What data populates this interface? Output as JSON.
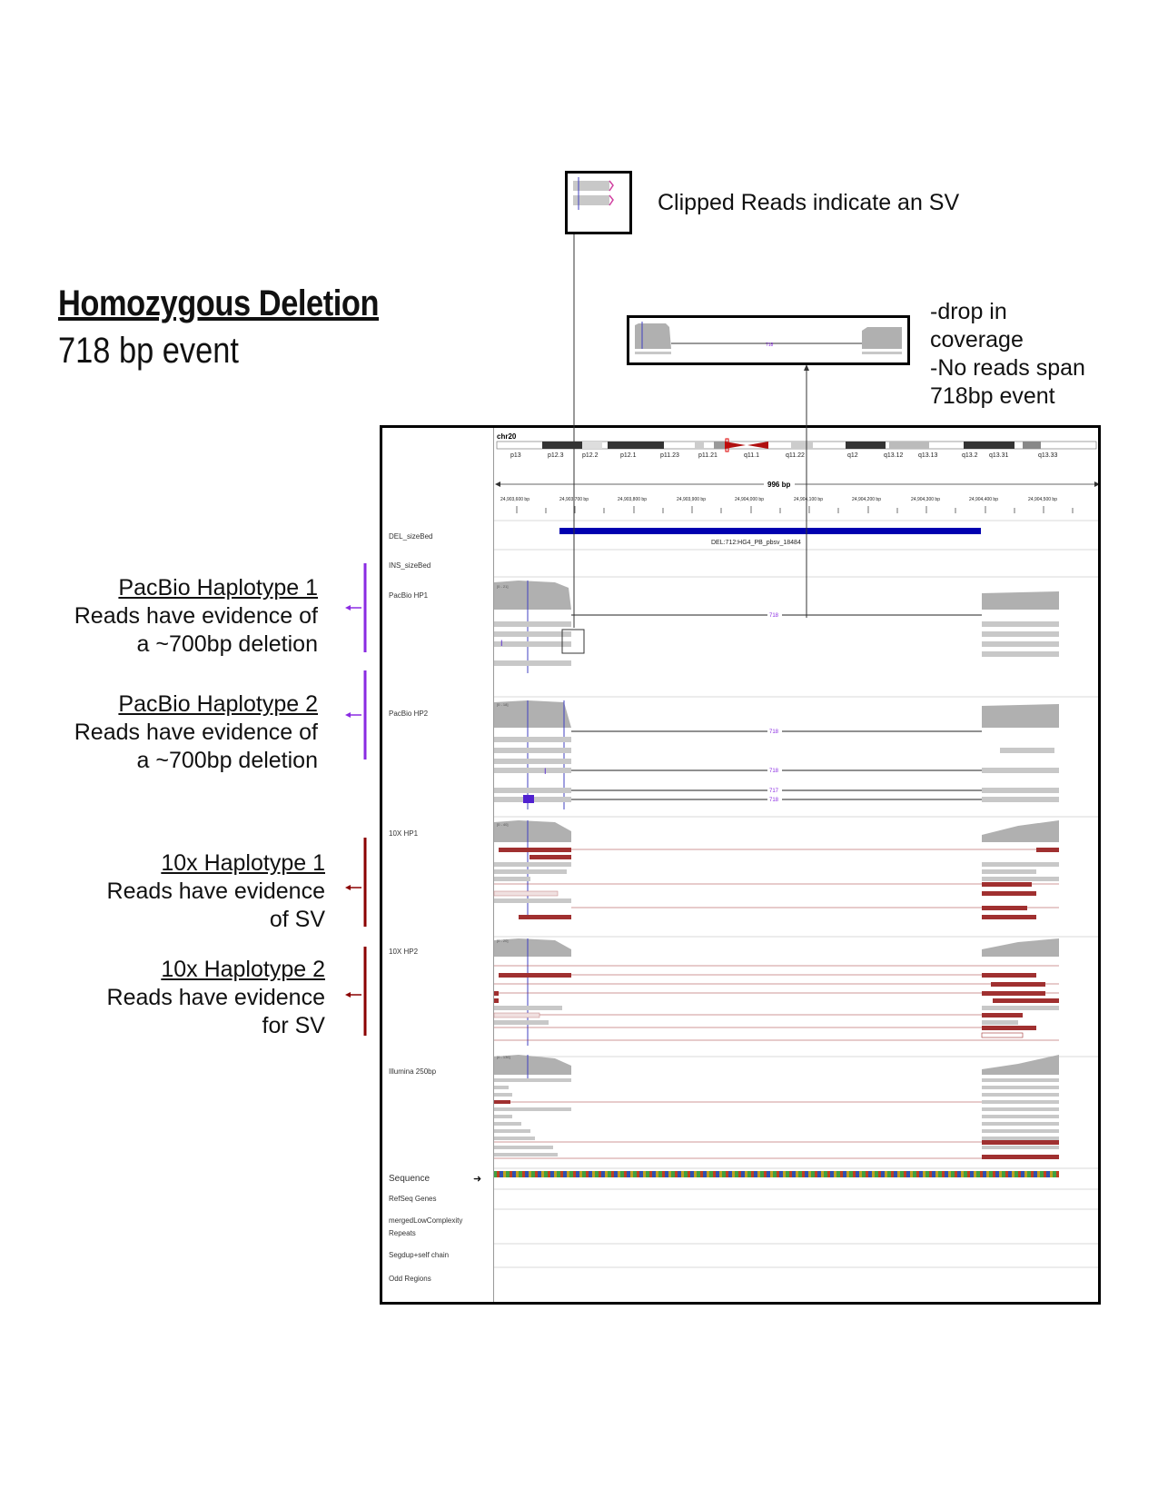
{
  "title": "Homozygous Deletion",
  "subtitle": "718 bp event",
  "callouts": {
    "clipped": "Clipped Reads indicate an SV",
    "coverage": [
      "-drop in",
      "coverage",
      "-No reads span",
      "718bp event"
    ]
  },
  "side_labels": [
    {
      "heading": "PacBio Haplotype 1",
      "lines": [
        "Reads have evidence of",
        "a ~700bp deletion"
      ],
      "color": "#8a2be2"
    },
    {
      "heading": "PacBio Haplotype 2",
      "lines": [
        "Reads have evidence of",
        "a ~700bp deletion"
      ],
      "color": "#8a2be2"
    },
    {
      "heading": "10x Haplotype 1",
      "lines": [
        "Reads have evidence",
        "of SV"
      ],
      "color": "#8b0000"
    },
    {
      "heading": "10x Haplotype 2",
      "lines": [
        "Reads have evidence",
        "for SV"
      ],
      "color": "#8b0000"
    }
  ],
  "igv": {
    "chromosome": "chr20",
    "bands": [
      "p13",
      "p12.3",
      "p12.2",
      "p12.1",
      "p11.23",
      "p11.21",
      "q11.1",
      "q11.22",
      "q12",
      "q13.12",
      "q13.13",
      "q13.2",
      "q13.31",
      "q13.33"
    ],
    "span": "996 bp",
    "ticks": [
      "24,903,600 bp",
      "24,903,700 bp",
      "24,903,800 bp",
      "24,903,900 bp",
      "24,904,000 bp",
      "24,904,100 bp",
      "24,904,200 bp",
      "24,904,300 bp",
      "24,904,400 bp",
      "24,904,500 bp"
    ],
    "tracks": {
      "del": "DEL_sizeBed",
      "ins": "INS_sizeBed",
      "pb1": "PacBio HP1",
      "pb2": "PacBio HP2",
      "tx1": "10X HP1",
      "tx2": "10X HP2",
      "ill": "Illumina 250bp",
      "seq": "Sequence",
      "refseq": "RefSeq Genes",
      "lowcomp1": "mergedLowComplexity",
      "lowcomp2": "Repeats",
      "segdup": "Segdup+self chain",
      "odd": "Odd Regions"
    },
    "del_feature_label": "DEL:712:HG4_PB_pbsv_18484",
    "range_labels": {
      "pb1": "[0 - 21]",
      "pb2": "[0 - 18]",
      "tx1": "[0 - 40]",
      "tx2": "[0 - 20]",
      "ill": "[0 - 136]"
    },
    "gap_labels": {
      "pb1": "718",
      "pb2a": "718",
      "pb2b": "718",
      "pb2c": "717",
      "pb2d": "718"
    }
  }
}
